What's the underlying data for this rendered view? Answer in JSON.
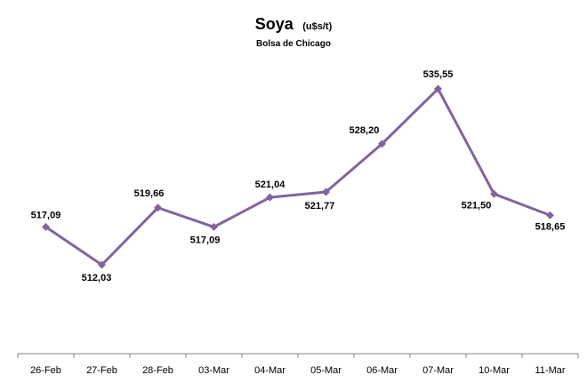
{
  "chart_data": {
    "type": "line",
    "title": "Soya",
    "title_unit": "(u$s/t)",
    "subtitle": "Bolsa de Chicago",
    "categories": [
      "26-Feb",
      "27-Feb",
      "28-Feb",
      "03-Mar",
      "04-Mar",
      "05-Mar",
      "06-Mar",
      "07-Mar",
      "10-Mar",
      "11-Mar"
    ],
    "series": [
      {
        "values": [
          517.09,
          512.03,
          519.66,
          517.09,
          521.04,
          521.77,
          528.2,
          535.55,
          521.5,
          518.65
        ],
        "labels": [
          "517,09",
          "512,03",
          "519,66",
          "517,09",
          "521,04",
          "521,77",
          "528,20",
          "535,55",
          "521,50",
          "518,65"
        ],
        "color": "#8064A2"
      }
    ],
    "grid": false,
    "legend": "none",
    "marker": "diamond"
  }
}
